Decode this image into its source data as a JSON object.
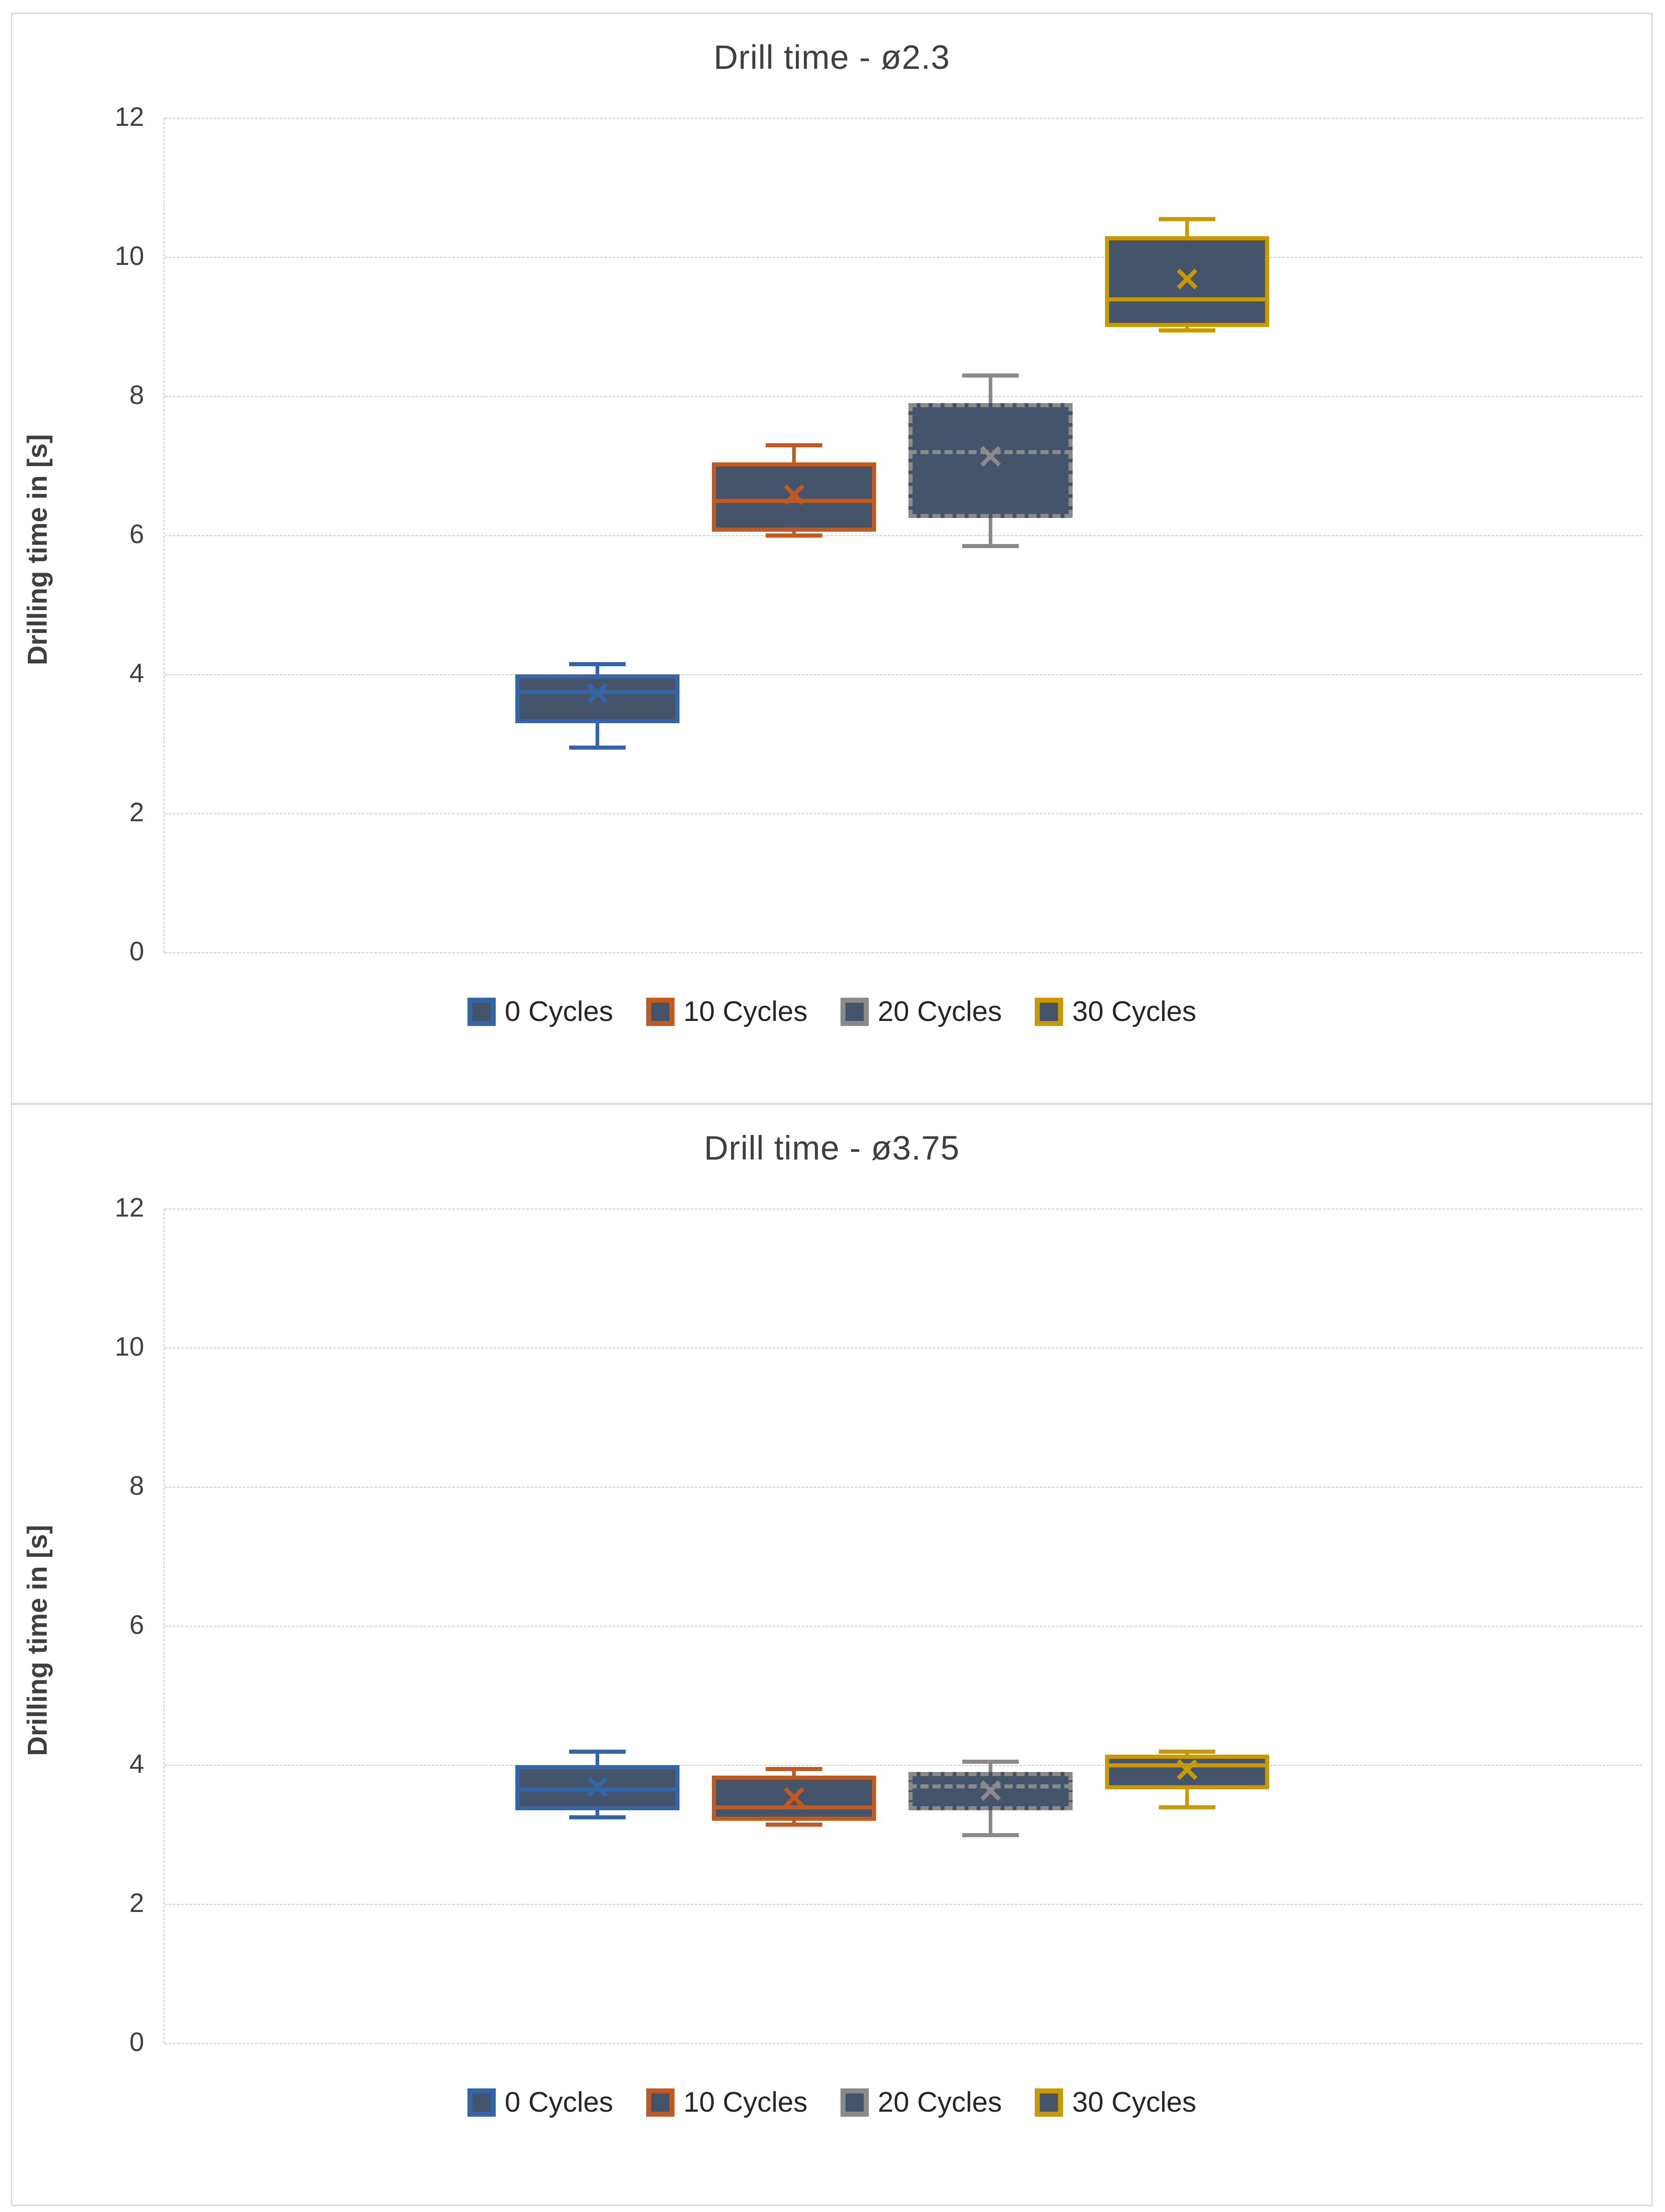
{
  "box_fill_color": "#44546a",
  "grid_color": "#d9d9d9",
  "text_color": "#3f3f3f",
  "chart_data": [
    {
      "type": "box",
      "title": "Drill time - ø2.3",
      "ylabel": "Drilling time in [s]",
      "ylim": [
        0,
        12
      ],
      "yticks": [
        0,
        2,
        4,
        6,
        8,
        10,
        12
      ],
      "grid": "dashed horizontal",
      "legend_position": "bottom",
      "categories": [
        "0 Cycles",
        "10 Cycles",
        "20 Cycles",
        "30 Cycles"
      ],
      "series": [
        {
          "name": "0 Cycles",
          "color": "#3465a8",
          "border_style": "solid",
          "whisker_low": 2.95,
          "q1": 3.3,
          "median": 3.75,
          "q3": 4.0,
          "whisker_high": 4.15,
          "mean": 3.7
        },
        {
          "name": "10 Cycles",
          "color": "#c05a21",
          "border_style": "solid",
          "whisker_low": 6.0,
          "q1": 6.05,
          "median": 6.5,
          "q3": 7.05,
          "whisker_high": 7.3,
          "mean": 6.55
        },
        {
          "name": "20 Cycles",
          "color": "#8a8a8a",
          "border_style": "dashed",
          "whisker_low": 5.85,
          "q1": 6.25,
          "median": 7.2,
          "q3": 7.9,
          "whisker_high": 8.3,
          "mean": 7.1
        },
        {
          "name": "30 Cycles",
          "color": "#c99a00",
          "border_style": "solid",
          "whisker_low": 8.95,
          "q1": 9.0,
          "median": 9.4,
          "q3": 10.3,
          "whisker_high": 10.55,
          "mean": 9.65
        }
      ]
    },
    {
      "type": "box",
      "title": "Drill time - ø3.75",
      "ylabel": "Drilling time in [s]",
      "ylim": [
        0,
        12
      ],
      "yticks": [
        0,
        2,
        4,
        6,
        8,
        10,
        12
      ],
      "grid": "dashed horizontal",
      "legend_position": "bottom",
      "categories": [
        "0 Cycles",
        "10 Cycles",
        "20 Cycles",
        "30 Cycles"
      ],
      "series": [
        {
          "name": "0 Cycles",
          "color": "#3465a8",
          "border_style": "solid",
          "whisker_low": 3.25,
          "q1": 3.35,
          "median": 3.65,
          "q3": 4.0,
          "whisker_high": 4.2,
          "mean": 3.65
        },
        {
          "name": "10 Cycles",
          "color": "#c05a21",
          "border_style": "solid",
          "whisker_low": 3.15,
          "q1": 3.2,
          "median": 3.4,
          "q3": 3.85,
          "whisker_high": 3.95,
          "mean": 3.5
        },
        {
          "name": "20 Cycles",
          "color": "#8a8a8a",
          "border_style": "dashed",
          "whisker_low": 3.0,
          "q1": 3.35,
          "median": 3.7,
          "q3": 3.9,
          "whisker_high": 4.05,
          "mean": 3.6
        },
        {
          "name": "30 Cycles",
          "color": "#c99a00",
          "border_style": "solid",
          "whisker_low": 3.4,
          "q1": 3.65,
          "median": 4.0,
          "q3": 4.15,
          "whisker_high": 4.2,
          "mean": 3.9
        }
      ]
    }
  ]
}
